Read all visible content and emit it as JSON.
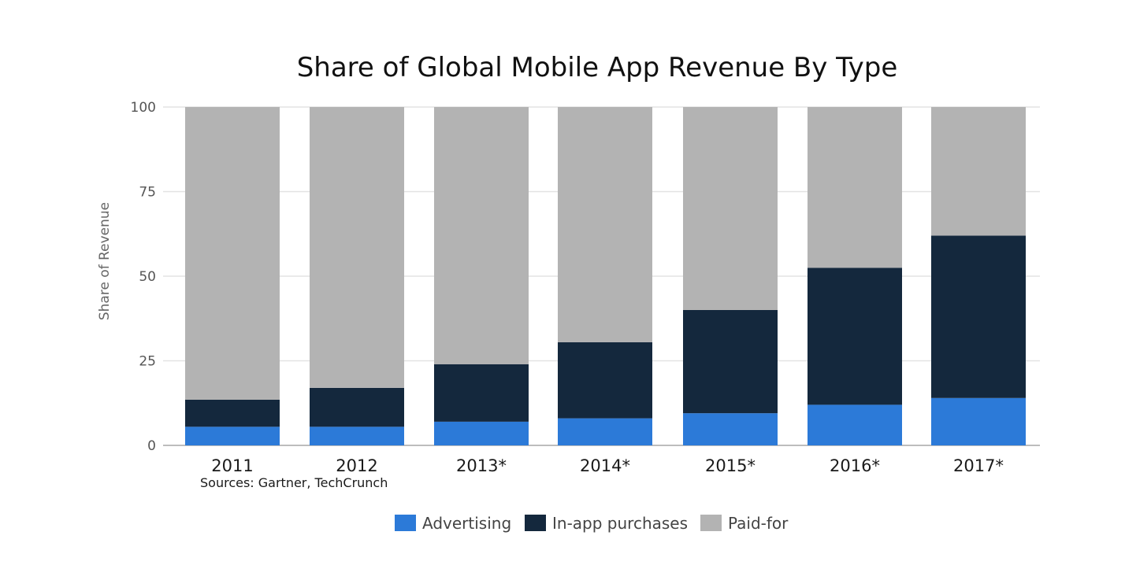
{
  "chart_data": {
    "type": "bar",
    "stacked": true,
    "title": "Share of Global Mobile App Revenue By Type",
    "xlabel": "",
    "ylabel": "Share of Revenue",
    "ylim": [
      0,
      100
    ],
    "yticks": [
      "0",
      "25",
      "50",
      "75",
      "100"
    ],
    "grid": true,
    "legend_position": "bottom",
    "note": "Sources: Gartner, TechCrunch",
    "categories": [
      "2011",
      "2012",
      "2013*",
      "2014*",
      "2015*",
      "2016*",
      "2017*"
    ],
    "series": [
      {
        "name": "Advertising",
        "color": "#2c7ad8",
        "values": [
          5.5,
          5.5,
          7,
          8,
          9.5,
          12,
          14
        ]
      },
      {
        "name": "In-app purchases",
        "color": "#14283d",
        "values": [
          8,
          11.5,
          17,
          22.5,
          30.5,
          40.5,
          48
        ]
      },
      {
        "name": "Paid-for",
        "color": "#b3b3b3",
        "values": [
          86.5,
          83,
          76,
          69.5,
          60,
          47.5,
          38
        ]
      }
    ]
  }
}
